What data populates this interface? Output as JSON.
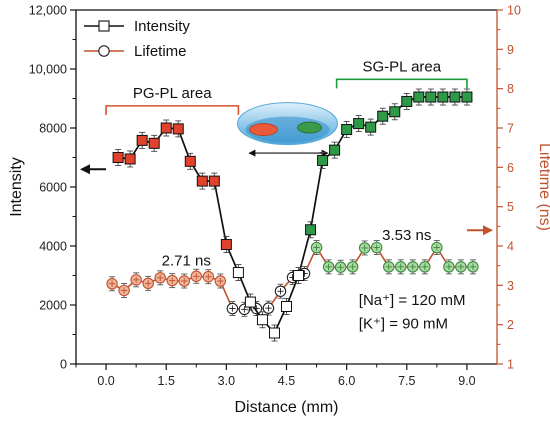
{
  "chart_data": {
    "type": "line",
    "xlabel": "Distance (mm)",
    "ylabel_left": "Intensity",
    "ylabel_right": "Lifetime (ns)",
    "xlim": [
      -0.75,
      9.75
    ],
    "ylim_left": [
      0,
      12000
    ],
    "ylim_right": [
      1,
      10
    ],
    "x_ticks": [
      "0.0",
      "1.5",
      "3.0",
      "4.5",
      "6.0",
      "7.5",
      "9.0"
    ],
    "y_left_ticks": [
      "0",
      "2000",
      "4000",
      "6000",
      "8000",
      "10,000",
      "12,000"
    ],
    "y_right_ticks": [
      "1",
      "2",
      "3",
      "4",
      "5",
      "6",
      "7",
      "8",
      "9",
      "10"
    ],
    "colors": {
      "intensity_line": "#111111",
      "lifetime_line": "#c0522e",
      "pg_marker": "#e2412c",
      "sg_marker": "#2e9a47",
      "right_axis": "#c0522e",
      "lifetime_marker": "#f0b49a",
      "lifetime_marker_green": "#a9d9a3",
      "region_pg_bracket": "#d4532e",
      "region_sg_bracket": "#1f9b3d"
    },
    "series": [
      {
        "name": "Intensity",
        "axis": "left",
        "marker": "square",
        "x": [
          0.3,
          0.6,
          0.9,
          1.2,
          1.5,
          1.8,
          2.1,
          2.4,
          2.7,
          3.0,
          3.3,
          3.6,
          3.9,
          4.2,
          4.5,
          4.8,
          5.1,
          5.4,
          5.7,
          6.0,
          6.3,
          6.6,
          6.9,
          7.2,
          7.5,
          7.8,
          8.1,
          8.4,
          8.7,
          9.0
        ],
        "y": [
          7000,
          6950,
          7580,
          7480,
          8000,
          7970,
          6870,
          6200,
          6200,
          4050,
          3100,
          2100,
          1500,
          1050,
          1950,
          3000,
          4550,
          6900,
          7250,
          7950,
          8150,
          8030,
          8400,
          8550,
          8900,
          9050,
          9050,
          9050,
          9050,
          9050
        ],
        "marker_fill": [
          "#e2412c",
          "#e2412c",
          "#e2412c",
          "#e2412c",
          "#e2412c",
          "#e2412c",
          "#e2412c",
          "#e2412c",
          "#e2412c",
          "#e2412c",
          "#ffffff",
          "#ffffff",
          "#ffffff",
          "#ffffff",
          "#ffffff",
          "#ffffff",
          "#2e9a47",
          "#2e9a47",
          "#2e9a47",
          "#2e9a47",
          "#2e9a47",
          "#2e9a47",
          "#2e9a47",
          "#2e9a47",
          "#2e9a47",
          "#2e9a47",
          "#2e9a47",
          "#2e9a47",
          "#2e9a47",
          "#2e9a47"
        ]
      },
      {
        "name": "Lifetime",
        "axis": "right",
        "marker": "circle",
        "x": [
          0.15,
          0.45,
          0.75,
          1.05,
          1.35,
          1.65,
          1.95,
          2.25,
          2.55,
          2.85,
          3.15,
          3.45,
          3.75,
          4.05,
          4.35,
          4.65,
          4.95,
          5.25,
          5.55,
          5.85,
          6.15,
          6.45,
          6.75,
          7.05,
          7.35,
          7.65,
          7.95,
          8.25,
          8.55,
          8.85,
          9.15
        ],
        "y": [
          3.04,
          2.87,
          3.14,
          3.05,
          3.19,
          3.12,
          3.11,
          3.23,
          3.22,
          3.11,
          2.41,
          2.39,
          2.41,
          2.42,
          2.85,
          3.2,
          3.3,
          3.96,
          3.47,
          3.46,
          3.47,
          3.95,
          3.96,
          3.47,
          3.47,
          3.47,
          3.47,
          3.96,
          3.47,
          3.47,
          3.47
        ],
        "marker_fill": [
          "#f0b49a",
          "#f0b49a",
          "#f0b49a",
          "#f0b49a",
          "#f0b49a",
          "#f0b49a",
          "#f0b49a",
          "#f0b49a",
          "#f0b49a",
          "#f0b49a",
          "#ffffff",
          "#ffffff",
          "#ffffff",
          "#ffffff",
          "#ffffff",
          "#ffffff",
          "#ffffff",
          "#a9d9a3",
          "#a9d9a3",
          "#a9d9a3",
          "#a9d9a3",
          "#a9d9a3",
          "#a9d9a3",
          "#a9d9a3",
          "#a9d9a3",
          "#a9d9a3",
          "#a9d9a3",
          "#a9d9a3",
          "#a9d9a3",
          "#a9d9a3",
          "#a9d9a3"
        ]
      }
    ],
    "legend": {
      "placement": "top-left",
      "items": [
        {
          "label": "Intensity",
          "marker": "square"
        },
        {
          "label": "Lifetime",
          "marker": "circle"
        }
      ]
    },
    "regions": [
      {
        "label": "PG-PL area",
        "x_range": [
          0.0,
          3.3
        ],
        "y": 8750
      },
      {
        "label": "SG-PL area",
        "x_range": [
          5.75,
          9.0
        ],
        "y": 9650
      }
    ],
    "annotations": [
      {
        "text": "2.71 ns",
        "x": 2.0,
        "y_right": 3.5
      },
      {
        "text": "3.53 ns",
        "x": 7.5,
        "y_right": 4.15
      },
      {
        "text": "[Na⁺] = 120 mM",
        "x": 7.6,
        "y_right": 2.5
      },
      {
        "text": "[K⁺] = 90 mM",
        "x": 7.6,
        "y_right": 1.9
      }
    ],
    "indicator_arrows": [
      {
        "axis": "left",
        "direction": "left",
        "y": 6600
      },
      {
        "axis": "right",
        "direction": "right",
        "y_right": 4.4
      }
    ]
  }
}
